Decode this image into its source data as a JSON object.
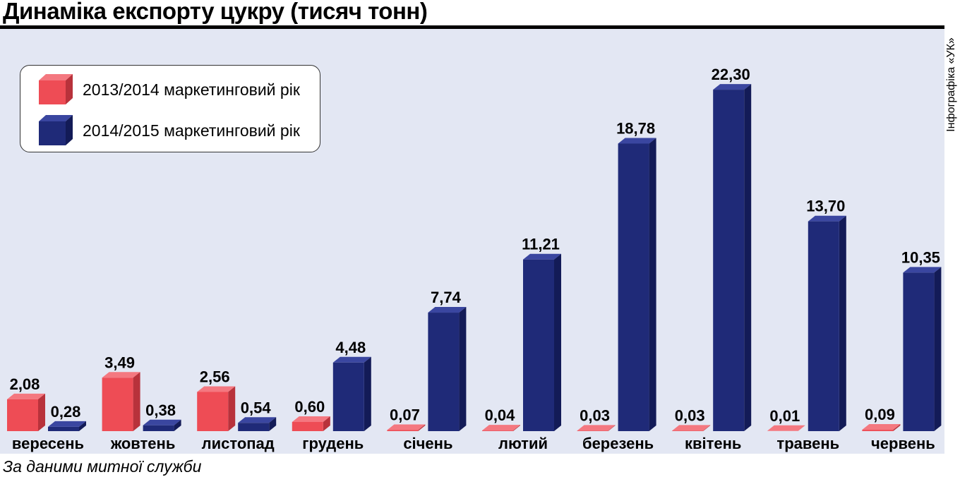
{
  "title": "Динаміка експорту цукру (тисяч тонн)",
  "credit": "Інфографіка «УК»",
  "source": "За даними митної служби",
  "colors": {
    "series1": {
      "front": "#ee4c55",
      "top": "#f47880",
      "side": "#b8323b"
    },
    "series2": {
      "front": "#1f2a78",
      "top": "#3a46a0",
      "side": "#131b57"
    },
    "background": "#e3e7f3"
  },
  "legend": [
    {
      "label": "2013/2014 маркетинговий рік",
      "icon": "red-cube-icon"
    },
    {
      "label": "2014/2015 маркетинговий рік",
      "icon": "blue-cube-icon"
    }
  ],
  "chart_data": {
    "type": "bar",
    "title": "Динаміка експорту цукру (тисяч тонн)",
    "xlabel": "",
    "ylabel": "",
    "grid": false,
    "legend_position": "top-left",
    "categories": [
      "вересень",
      "жовтень",
      "листопад",
      "грудень",
      "січень",
      "лютий",
      "березень",
      "квітень",
      "травень",
      "червень"
    ],
    "series": [
      {
        "name": "2013/2014 маркетинговий рік",
        "values": [
          2.08,
          3.49,
          2.56,
          0.6,
          0.07,
          0.04,
          0.03,
          0.03,
          0.01,
          0.09
        ],
        "labels": [
          "2,08",
          "3,49",
          "2,56",
          "0,60",
          "0,07",
          "0,04",
          "0,03",
          "0,03",
          "0,01",
          "0,09"
        ]
      },
      {
        "name": "2014/2015 маркетинговий рік",
        "values": [
          0.28,
          0.38,
          0.54,
          4.48,
          7.74,
          11.21,
          18.78,
          22.3,
          13.7,
          10.35
        ],
        "labels": [
          "0,28",
          "0,38",
          "0,54",
          "4,48",
          "7,74",
          "11,21",
          "18,78",
          "22,30",
          "13,70",
          "10,35"
        ]
      }
    ]
  }
}
